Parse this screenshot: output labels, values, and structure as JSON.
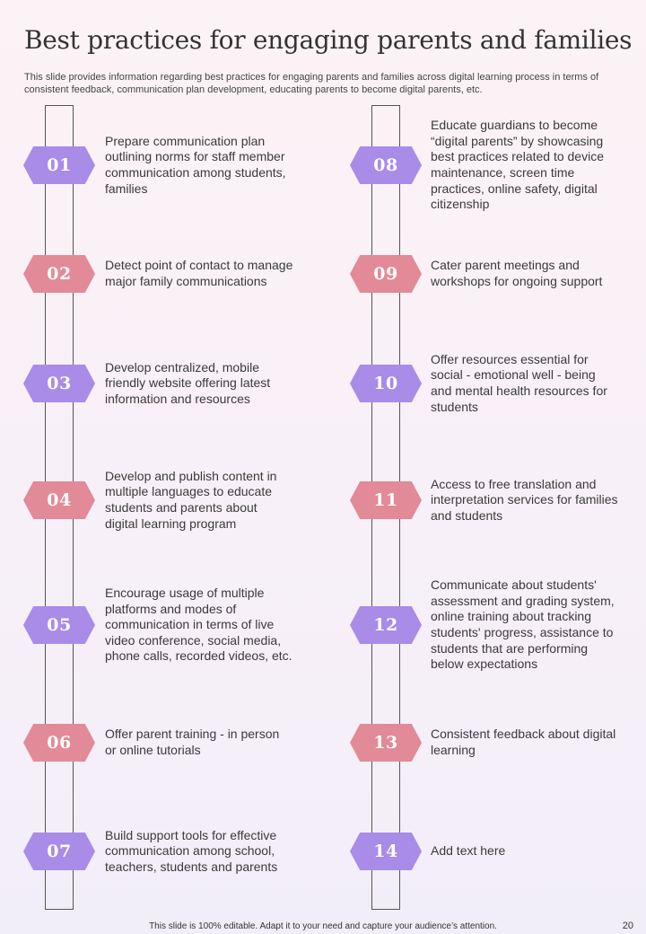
{
  "title": "Best practices for engaging parents and families",
  "subtitle": "This slide provides information regarding best practices for engaging parents and families across digital learning process in terms of consistent feedback, communication plan development, educating parents to become digital parents, etc.",
  "left_items": [
    {
      "number": "01",
      "text": "Prepare communication plan outlining  norms for staff member communication among students, families"
    },
    {
      "number": "02",
      "text": "Detect point of contact to manage major family communications"
    },
    {
      "number": "03",
      "text": "Develop centralized, mobile friendly website offering latest information and resources"
    },
    {
      "number": "04",
      "text": "Develop and publish content in multiple languages to educate students and parents about digital learning program"
    },
    {
      "number": "05",
      "text": "Encourage usage of multiple platforms and modes of communication in terms of live video conference, social media, phone calls, recorded videos, etc."
    },
    {
      "number": "06",
      "text": "Offer parent training - in person or online tutorials"
    },
    {
      "number": "07",
      "text": "Build support tools for effective communication among school, teachers, students and parents"
    }
  ],
  "right_items": [
    {
      "number": "08",
      "text": "Educate guardians to become “digital parents” by showcasing best practices related to device maintenance, screen time practices, online safety, digital citizenship"
    },
    {
      "number": "09",
      "text": "Cater parent meetings and workshops for ongoing support"
    },
    {
      "number": "10",
      "text": "Offer resources essential for social - emotional well - being and mental health resources for students"
    },
    {
      "number": "11",
      "text": "Access to free translation and interpretation services for families and students"
    },
    {
      "number": "12",
      "text": "Communicate about students' assessment and grading system, online training about tracking students' progress, assistance to students that are performing below expectations"
    },
    {
      "number": "13",
      "text": "Consistent feedback about digital learning"
    },
    {
      "number": "14",
      "text": "Add text here"
    }
  ],
  "colors": {
    "purple": "#a98be8",
    "pink": "#e28a97"
  },
  "footer": "This slide is 100% editable.  Adapt it to your need and capture your audience’s attention.",
  "page_number": "20"
}
